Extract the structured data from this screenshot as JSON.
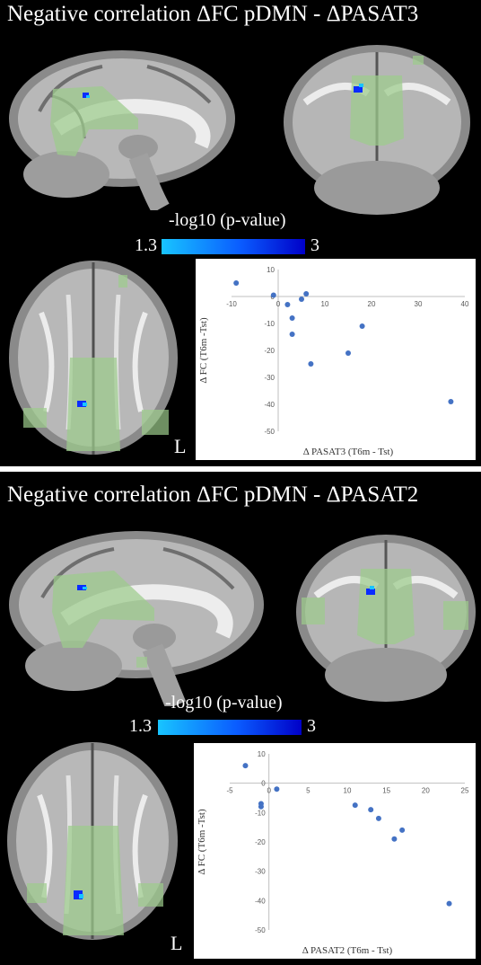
{
  "panels": [
    {
      "title": "Negative correlation ΔFC pDMN - ΔPASAT3",
      "colorbar": {
        "label": "-log10 (p-value)",
        "min": "1.3",
        "max": "3",
        "low_color": "#18c4ff",
        "high_color": "#0000c8"
      },
      "orientation_label": "L",
      "overlay_color": "#9ccc8c",
      "chart_data": {
        "type": "scatter",
        "xlabel": "Δ PASAT3 (T6m - Tst)",
        "ylabel": "Δ FC (T6m -Tst)",
        "xlim": [
          -10,
          40
        ],
        "ylim": [
          -50,
          10
        ],
        "xticks": [
          -10,
          0,
          10,
          20,
          30,
          40
        ],
        "yticks": [
          10,
          0,
          -10,
          -20,
          -30,
          -40,
          -50
        ],
        "marker_color": "#4472c4",
        "points": [
          {
            "x": -9,
            "y": 5
          },
          {
            "x": -1,
            "y": 0.5
          },
          {
            "x": 2,
            "y": -3
          },
          {
            "x": 3,
            "y": -8
          },
          {
            "x": 3,
            "y": -14
          },
          {
            "x": 5,
            "y": -1
          },
          {
            "x": 6,
            "y": 1
          },
          {
            "x": 7,
            "y": -25
          },
          {
            "x": 15,
            "y": -21
          },
          {
            "x": 18,
            "y": -11
          },
          {
            "x": 37,
            "y": -39
          }
        ]
      }
    },
    {
      "title": "Negative correlation ΔFC pDMN - ΔPASAT2",
      "colorbar": {
        "label": "-log10 (p-value)",
        "min": "1.3",
        "max": "3",
        "low_color": "#18c4ff",
        "high_color": "#0000c8"
      },
      "orientation_label": "L",
      "overlay_color": "#9ccc8c",
      "chart_data": {
        "type": "scatter",
        "xlabel": "Δ PASAT2 (T6m - Tst)",
        "ylabel": "Δ FC (T6m -Tst)",
        "xlim": [
          -5,
          25
        ],
        "ylim": [
          -50,
          10
        ],
        "xticks": [
          -5,
          0,
          5,
          10,
          15,
          20,
          25
        ],
        "yticks": [
          10,
          0,
          -10,
          -20,
          -30,
          -40,
          -50
        ],
        "marker_color": "#4472c4",
        "points": [
          {
            "x": -3,
            "y": 6
          },
          {
            "x": -1,
            "y": -7
          },
          {
            "x": -1,
            "y": -8
          },
          {
            "x": 1,
            "y": -2
          },
          {
            "x": 11,
            "y": -7.5
          },
          {
            "x": 13,
            "y": -9
          },
          {
            "x": 14,
            "y": -12
          },
          {
            "x": 16,
            "y": -19
          },
          {
            "x": 17,
            "y": -16
          },
          {
            "x": 23,
            "y": -41
          }
        ]
      }
    }
  ]
}
